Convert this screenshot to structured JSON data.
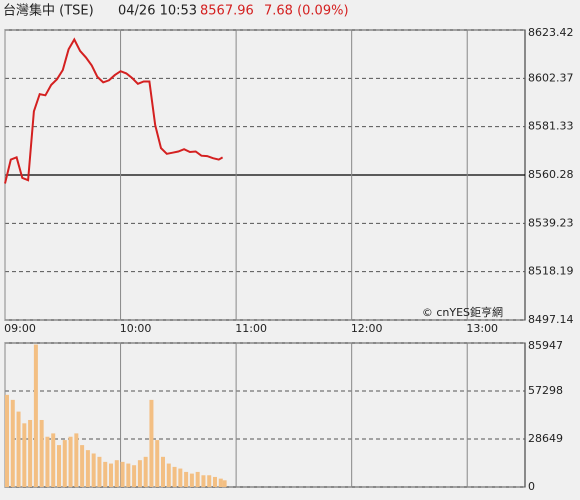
{
  "header": {
    "name": "台灣集中 (TSE)",
    "time": "04/26 10:53",
    "price": "8567.96",
    "change": "7.68 (0.09%)"
  },
  "chart_data": [
    {
      "type": "line",
      "color": "#d42020",
      "x": [
        "09:00",
        "09:03",
        "09:06",
        "09:09",
        "09:12",
        "09:15",
        "09:18",
        "09:21",
        "09:24",
        "09:27",
        "09:30",
        "09:33",
        "09:36",
        "09:39",
        "09:42",
        "09:45",
        "09:48",
        "09:51",
        "09:54",
        "09:57",
        "10:00",
        "10:03",
        "10:06",
        "10:09",
        "10:12",
        "10:15",
        "10:18",
        "10:21",
        "10:24",
        "10:27",
        "10:30",
        "10:33",
        "10:36",
        "10:39",
        "10:42",
        "10:45",
        "10:48",
        "10:51",
        "10:53"
      ],
      "values": [
        8556.6,
        8567,
        8568,
        8559,
        8558,
        8588,
        8595.5,
        8595,
        8599.5,
        8602,
        8606,
        8615,
        8619.3,
        8614.3,
        8611.5,
        8608,
        8603,
        8600.6,
        8601.5,
        8603.8,
        8605.5,
        8604.5,
        8602.5,
        8600,
        8601,
        8601,
        8582,
        8572,
        8569.5,
        8570,
        8570.5,
        8571.5,
        8570.3,
        8570.5,
        8568.7,
        8568.5,
        8567.6,
        8567,
        8567.96
      ],
      "xlim": [
        "09:00",
        "13:30"
      ],
      "xticks": [
        "09:00",
        "10:00",
        "11:00",
        "12:00",
        "13:00"
      ],
      "ylim": [
        8497.14,
        8623.42
      ],
      "yticks": [
        8623.42,
        8602.37,
        8581.33,
        8560.28,
        8539.23,
        8518.19,
        8497.14
      ],
      "reference": 8560.28,
      "grid": true,
      "annotation": "© cnYES鉅亨網"
    },
    {
      "type": "bar",
      "color": "#f3bf83",
      "x": [
        "09:00",
        "09:03",
        "09:06",
        "09:09",
        "09:12",
        "09:15",
        "09:18",
        "09:21",
        "09:24",
        "09:27",
        "09:30",
        "09:33",
        "09:36",
        "09:39",
        "09:42",
        "09:45",
        "09:48",
        "09:51",
        "09:54",
        "09:57",
        "10:00",
        "10:03",
        "10:06",
        "10:09",
        "10:12",
        "10:15",
        "10:18",
        "10:21",
        "10:24",
        "10:27",
        "10:30",
        "10:33",
        "10:36",
        "10:39",
        "10:42",
        "10:45",
        "10:48",
        "10:51",
        "10:53"
      ],
      "values": [
        55000,
        52000,
        45000,
        38000,
        40000,
        85000,
        40000,
        30000,
        32000,
        25000,
        28000,
        30000,
        32000,
        25000,
        22000,
        20000,
        18000,
        15000,
        14000,
        16000,
        15000,
        14000,
        13000,
        16000,
        18000,
        52000,
        28000,
        18000,
        14000,
        12000,
        11000,
        9000,
        8000,
        9000,
        7000,
        7000,
        6000,
        5000,
        4000
      ],
      "xlim": [
        "09:00",
        "13:30"
      ],
      "xticks": [
        "09:00",
        "10:00",
        "11:00",
        "12:00",
        "13:00"
      ],
      "ylim": [
        0,
        85947
      ],
      "yticks": [
        85947,
        57298,
        28649,
        0
      ],
      "grid": true
    }
  ]
}
